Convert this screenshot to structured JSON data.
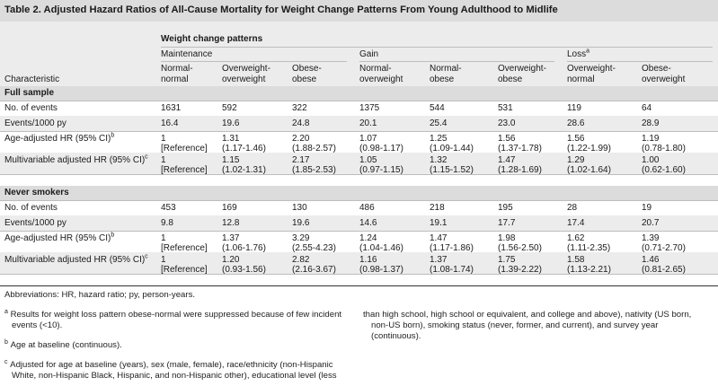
{
  "table": {
    "title": "Table 2. Adjusted Hazard Ratios of All-Cause Mortality for Weight Change Patterns From Young Adulthood to Midlife",
    "header": {
      "group_label": "Weight change patterns",
      "characteristic": "Characteristic",
      "subgroups": {
        "maintenance": "Maintenance",
        "gain": "Gain",
        "loss": "Loss",
        "loss_sup": "a"
      },
      "columns": [
        [
          "Normal-",
          "normal"
        ],
        [
          "Overweight-",
          "overweight"
        ],
        [
          "Obese-",
          "obese"
        ],
        [
          "Normal-",
          "overweight"
        ],
        [
          "Normal-",
          "obese"
        ],
        [
          "Overweight-",
          "obese"
        ],
        [
          "Overweight-",
          "normal"
        ],
        [
          "Obese-",
          "overweight"
        ]
      ]
    },
    "sections": [
      {
        "title": "Full sample",
        "rows": [
          {
            "label": "No. of events",
            "sup": "",
            "values": [
              [
                "1631"
              ],
              [
                "592"
              ],
              [
                "322"
              ],
              [
                "1375"
              ],
              [
                "544"
              ],
              [
                "531"
              ],
              [
                "119"
              ],
              [
                "64"
              ]
            ]
          },
          {
            "label": "Events/1000 py",
            "sup": "",
            "values": [
              [
                "16.4"
              ],
              [
                "19.6"
              ],
              [
                "24.8"
              ],
              [
                "20.1"
              ],
              [
                "25.4"
              ],
              [
                "23.0"
              ],
              [
                "28.6"
              ],
              [
                "28.9"
              ]
            ]
          },
          {
            "label": "Age-adjusted HR (95% CI)",
            "sup": "b",
            "values": [
              [
                "1",
                "[Reference]"
              ],
              [
                "1.31",
                "(1.17-1.46)"
              ],
              [
                "2.20",
                "(1.88-2.57)"
              ],
              [
                "1.07",
                "(0.98-1.17)"
              ],
              [
                "1.25",
                "(1.09-1.44)"
              ],
              [
                "1.56",
                "(1.37-1.78)"
              ],
              [
                "1.56",
                "(1.22-1.99)"
              ],
              [
                "1.19",
                "(0.78-1.80)"
              ]
            ]
          },
          {
            "label": "Multivariable adjusted HR (95% CI)",
            "sup": "c",
            "values": [
              [
                "1",
                "[Reference]"
              ],
              [
                "1.15",
                "(1.02-1.31)"
              ],
              [
                "2.17",
                "(1.85-2.53)"
              ],
              [
                "1.05",
                "(0.97-1.15)"
              ],
              [
                "1.32",
                "(1.15-1.52)"
              ],
              [
                "1.47",
                "(1.28-1.69)"
              ],
              [
                "1.29",
                "(1.02-1.64)"
              ],
              [
                "1.00",
                "(0.62-1.60)"
              ]
            ]
          }
        ]
      },
      {
        "title": "Never smokers",
        "rows": [
          {
            "label": "No. of events",
            "sup": "",
            "values": [
              [
                "453"
              ],
              [
                "169"
              ],
              [
                "130"
              ],
              [
                "486"
              ],
              [
                "218"
              ],
              [
                "195"
              ],
              [
                "28"
              ],
              [
                "19"
              ]
            ]
          },
          {
            "label": "Events/1000 py",
            "sup": "",
            "values": [
              [
                "9.8"
              ],
              [
                "12.8"
              ],
              [
                "19.6"
              ],
              [
                "14.6"
              ],
              [
                "19.1"
              ],
              [
                "17.7"
              ],
              [
                "17.4"
              ],
              [
                "20.7"
              ]
            ]
          },
          {
            "label": "Age-adjusted HR (95% CI)",
            "sup": "b",
            "values": [
              [
                "1",
                "[Reference]"
              ],
              [
                "1.37",
                "(1.06-1.76)"
              ],
              [
                "3.29",
                "(2.55-4.23)"
              ],
              [
                "1.24",
                "(1.04-1.46)"
              ],
              [
                "1.47",
                "(1.17-1.86)"
              ],
              [
                "1.98",
                "(1.56-2.50)"
              ],
              [
                "1.62",
                "(1.11-2.35)"
              ],
              [
                "1.39",
                "(0.71-2.70)"
              ]
            ]
          },
          {
            "label": "Multivariable adjusted HR (95% CI)",
            "sup": "c",
            "values": [
              [
                "1",
                "[Reference]"
              ],
              [
                "1.20",
                "(0.93-1.56)"
              ],
              [
                "2.82",
                "(2.16-3.67)"
              ],
              [
                "1.16",
                "(0.98-1.37)"
              ],
              [
                "1.37",
                "(1.08-1.74)"
              ],
              [
                "1.75",
                "(1.39-2.22)"
              ],
              [
                "1.58",
                "(1.13-2.21)"
              ],
              [
                "1.46",
                "(0.81-2.65)"
              ]
            ]
          }
        ]
      }
    ]
  },
  "footnotes": {
    "abbreviations": "Abbreviations: HR, hazard ratio; py, person-years.",
    "a_marker": "a",
    "a_lines": [
      "Results for weight loss pattern obese-normal were suppressed because of few incident",
      "events (<10)."
    ],
    "b_marker": "b",
    "b_line": "Age at baseline (continuous).",
    "c_marker": "c",
    "c_lines_left": [
      "Adjusted for age at baseline (years), sex (male, female), race/ethnicity (non-Hispanic",
      "White, non-Hispanic Black, Hispanic, and non-Hispanic other), educational level (less"
    ],
    "c_lines_right": [
      "than high school, high school or equivalent, and college and above), nativity (US born,",
      "non-US born), smoking status (never, former, and current), and survey year",
      "(continuous)."
    ]
  }
}
